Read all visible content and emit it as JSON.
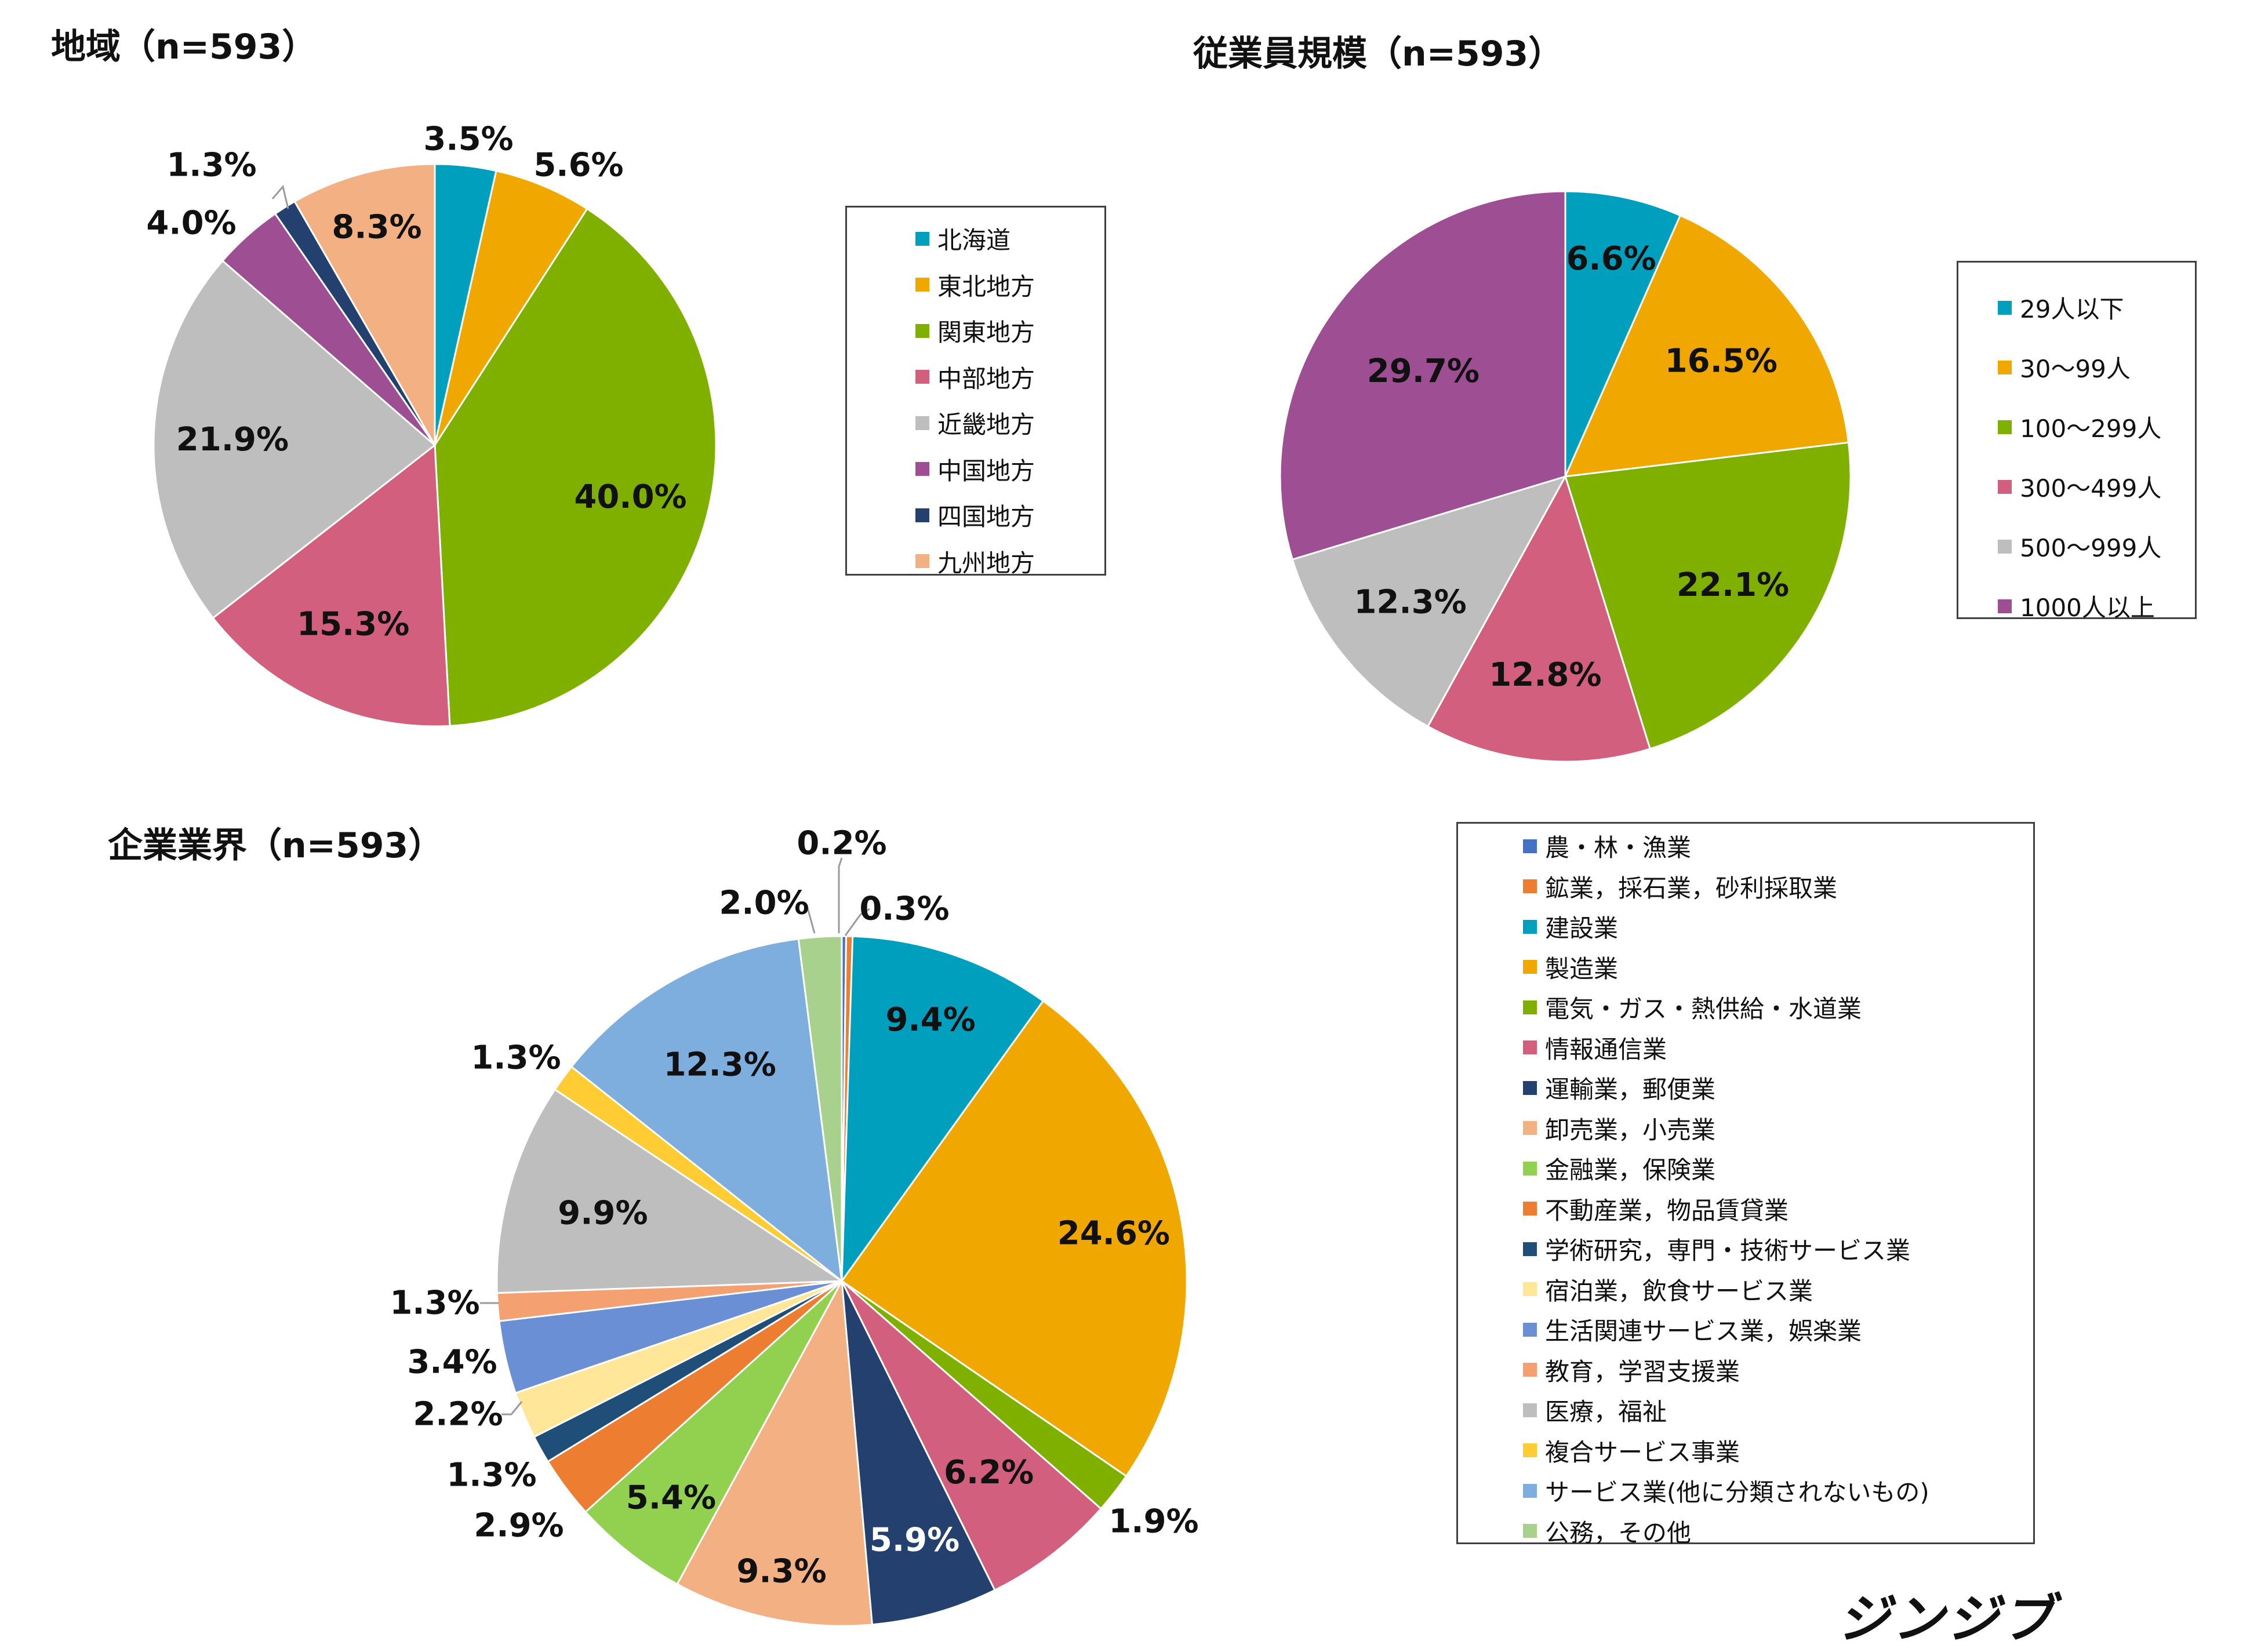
{
  "chart_data": [
    {
      "type": "pie",
      "title": "地域（n=593）",
      "categories": [
        "北海道",
        "東北地方",
        "関東地方",
        "中部地方",
        "近畿地方",
        "中国地方",
        "四国地方",
        "九州地方"
      ],
      "values": [
        3.5,
        5.6,
        40.0,
        15.3,
        21.9,
        4.0,
        1.3,
        8.3
      ],
      "labels": [
        "3.5%",
        "5.6%",
        "40.0%",
        "15.3%",
        "21.9%",
        "4.0%",
        "1.3%",
        "8.3%"
      ],
      "colors": [
        "#009FBD",
        "#F0A800",
        "#7FB000",
        "#D15F7D",
        "#BEBEBE",
        "#9E4F94",
        "#24406E",
        "#F2B083"
      ],
      "legend_position": "right"
    },
    {
      "type": "pie",
      "title": "従業員規模（n=593）",
      "categories": [
        "29人以下",
        "30〜99人",
        "100〜299人",
        "300〜499人",
        "500〜999人",
        "1000人以上"
      ],
      "values": [
        6.6,
        16.5,
        22.1,
        12.8,
        12.3,
        29.7
      ],
      "labels": [
        "6.6%",
        "16.5%",
        "22.1%",
        "12.8%",
        "12.3%",
        "29.7%"
      ],
      "colors": [
        "#009FBD",
        "#F0A800",
        "#7FB000",
        "#D15F7D",
        "#BEBEBE",
        "#9E4F94"
      ],
      "legend_position": "right"
    },
    {
      "type": "pie",
      "title": "企業業界（n=593）",
      "categories": [
        "農・林・漁業",
        "鉱業，採石業，砂利採取業",
        "建設業",
        "製造業",
        "電気・ガス・熱供給・水道業",
        "情報通信業",
        "運輸業，郵便業",
        "卸売業，小売業",
        "金融業，保険業",
        "不動産業，物品賃貸業",
        "学術研究，専門・技術サービス業",
        "宿泊業，飲食サービス業",
        "生活関連サービス業，娯楽業",
        "教育，学習支援業",
        "医療，福祉",
        "複合サービス事業",
        "サービス業(他に分類されないもの)",
        "公務，その他"
      ],
      "values": [
        0.2,
        0.3,
        9.4,
        24.6,
        1.9,
        6.2,
        5.9,
        9.3,
        5.4,
        2.9,
        1.3,
        2.2,
        3.4,
        1.3,
        9.9,
        1.3,
        12.3,
        2.0
      ],
      "labels": [
        "0.2%",
        "0.3%",
        "9.4%",
        "24.6%",
        "1.9%",
        "6.2%",
        "5.9%",
        "9.3%",
        "5.4%",
        "2.9%",
        "1.3%",
        "2.2%",
        "3.4%",
        "1.3%",
        "9.9%",
        "1.3%",
        "12.3%",
        "2.0%"
      ],
      "colors": [
        "#4472C4",
        "#ED7D31",
        "#009FBD",
        "#F0A800",
        "#7FB000",
        "#D15F7D",
        "#24406E",
        "#F2B083",
        "#92D050",
        "#ED7D31",
        "#1F4E79",
        "#FFE699",
        "#6A8FD4",
        "#F4A070",
        "#BEBEBE",
        "#FFCC33",
        "#7EAEDD",
        "#A9D18E"
      ],
      "legend_position": "right"
    }
  ],
  "brand": "ジンジブ"
}
